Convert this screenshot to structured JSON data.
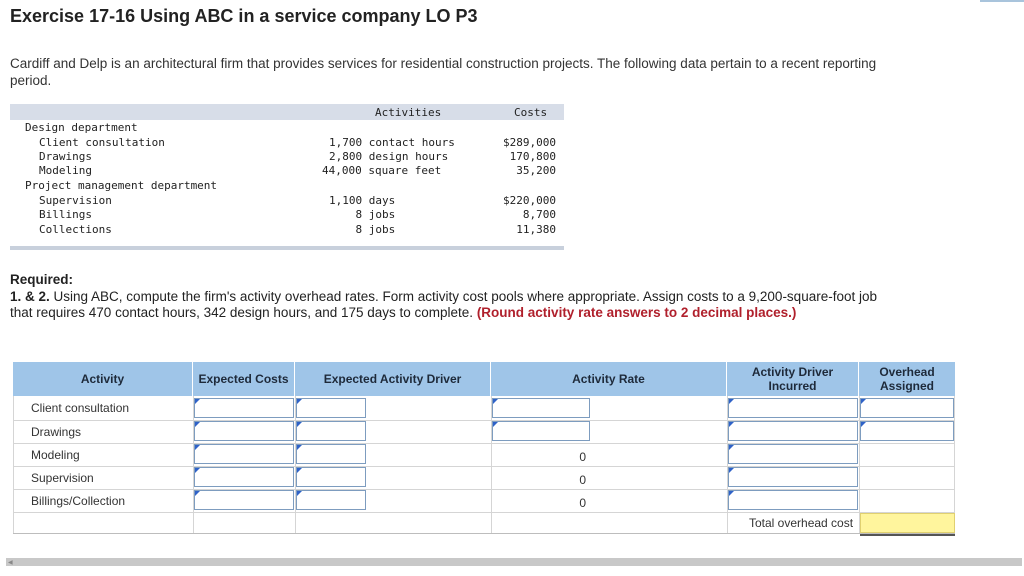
{
  "title": "Exercise 17-16 Using ABC in a service company LO P3",
  "intro": "Cardiff and Delp is an architectural firm that provides services for residential construction projects. The following data pertain to a recent reporting period.",
  "data_table": {
    "col_activities": "Activities",
    "col_costs": "Costs",
    "dept1": "Design department",
    "dept1_rows": [
      {
        "name": "Client consultation",
        "driver": "1,700 contact hours",
        "cost": "$289,000"
      },
      {
        "name": "Drawings",
        "driver": "2,800 design hours",
        "cost": "170,800"
      },
      {
        "name": "Modeling",
        "driver": "44,000 square feet",
        "cost": "35,200"
      }
    ],
    "dept2": "Project management department",
    "dept2_rows": [
      {
        "name": "Supervision",
        "driver": "1,100 days",
        "cost": "$220,000"
      },
      {
        "name": "Billings",
        "driver": "    8 jobs",
        "cost": "8,700"
      },
      {
        "name": "Collections",
        "driver": "    8 jobs",
        "cost": "11,380"
      }
    ]
  },
  "required": {
    "heading": "Required:",
    "num": "1. & 2.",
    "text": " Using ABC, compute the firm's activity overhead rates. Form activity cost pools where appropriate. Assign costs to a 9,200-square-foot job that requires 470 contact hours, 342 design hours, and 175 days to complete. ",
    "note": "(Round activity rate answers to 2 decimal places.)"
  },
  "answer_table": {
    "headers": [
      "Activity",
      "Expected Costs",
      "Expected Activity Driver",
      "Activity Rate",
      "Activity Driver Incurred",
      "Overhead Assigned"
    ],
    "rows": [
      {
        "activity": "Client consultation",
        "rate": ""
      },
      {
        "activity": "Drawings",
        "rate": ""
      },
      {
        "activity": "Modeling",
        "rate": "0"
      },
      {
        "activity": "Supervision",
        "rate": "0"
      },
      {
        "activity": "Billings/Collection",
        "rate": "0"
      }
    ],
    "total_label": "Total overhead cost"
  },
  "colors": {
    "header_bg": "#9fc5e8",
    "total_bg": "#fff59d",
    "note_red": "#b0202c"
  }
}
